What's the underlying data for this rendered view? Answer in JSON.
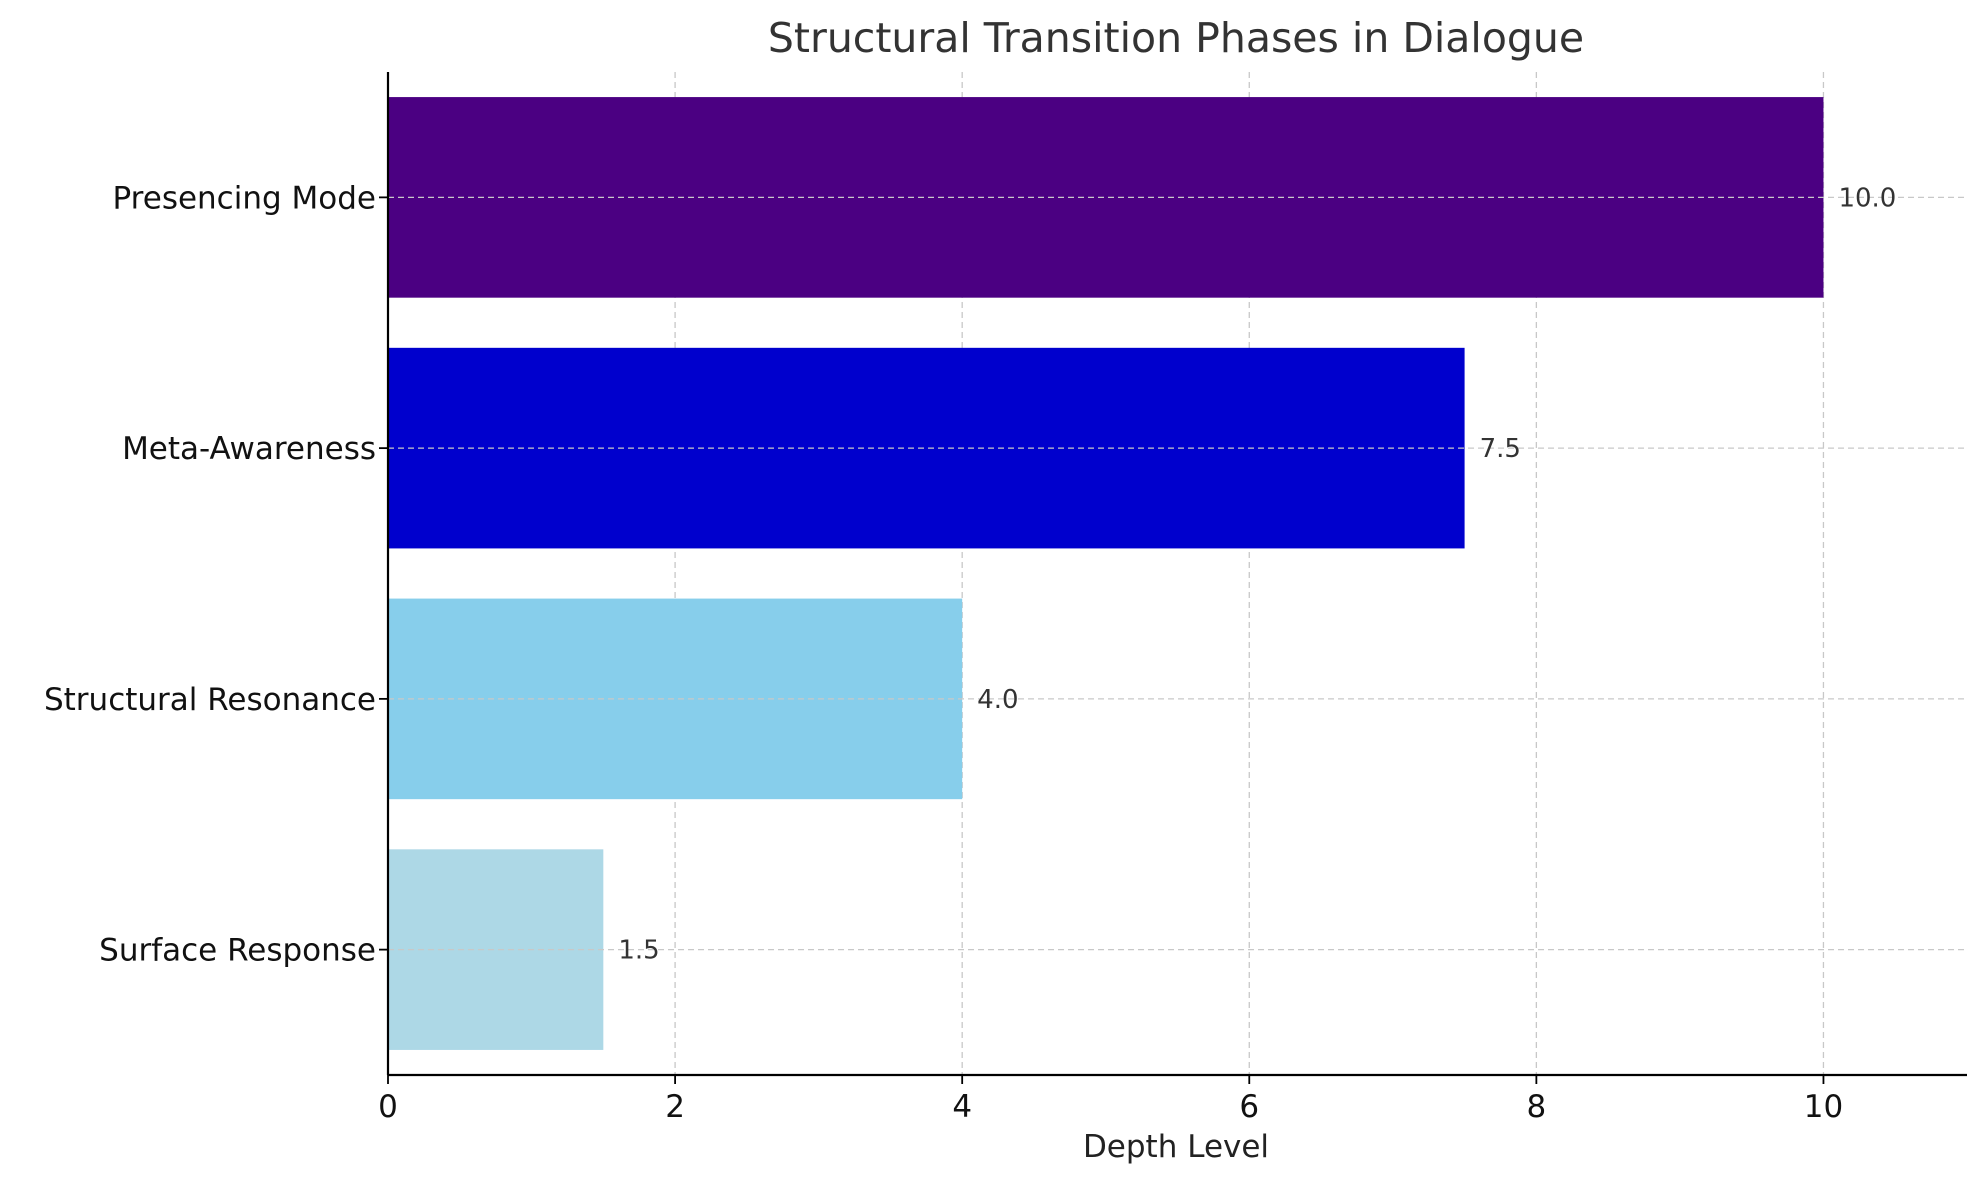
{
  "chart_data": {
    "type": "bar",
    "orientation": "horizontal",
    "title": "Structural Transition Phases in Dialogue",
    "xlabel": "Depth Level",
    "ylabel": "",
    "categories": [
      "Surface Response",
      "Structural Resonance",
      "Meta-Awareness",
      "Presencing Mode"
    ],
    "values": [
      1.5,
      4.0,
      7.5,
      10.0
    ],
    "value_labels": [
      "1.5",
      "4.0",
      "7.5",
      "10.0"
    ],
    "colors": [
      "#add8e6",
      "#87ceeb",
      "#0000cd",
      "#4b0082"
    ],
    "xlim": [
      0,
      11
    ],
    "xticks": [
      0,
      2,
      4,
      6,
      8,
      10
    ],
    "xtick_labels": [
      "0",
      "2",
      "4",
      "6",
      "8",
      "10"
    ],
    "grid": true
  }
}
